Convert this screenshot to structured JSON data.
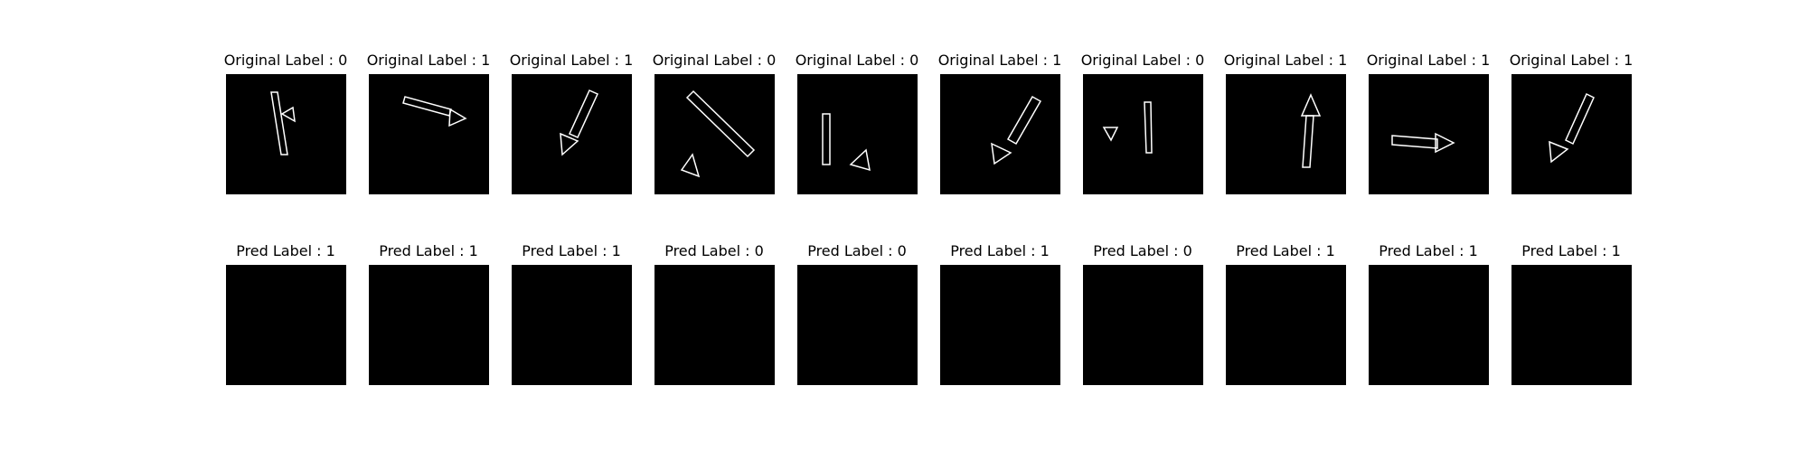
{
  "colors": {
    "background": "#ffffff",
    "panel": "#000000",
    "outline": "#ffffff",
    "text": "#000000"
  },
  "original_titles": [
    "Original Label : 0",
    "Original Label : 1",
    "Original Label : 1",
    "Original Label : 0",
    "Original Label : 0",
    "Original Label : 1",
    "Original Label : 0",
    "Original Label : 1",
    "Original Label : 1",
    "Original Label : 1"
  ],
  "pred_titles": [
    "Pred Label : 1",
    "Pred Label : 1",
    "Pred Label : 1",
    "Pred Label : 0",
    "Pred Label : 0",
    "Pred Label : 1",
    "Pred Label : 0",
    "Pred Label : 1",
    "Pred Label : 1",
    "Pred Label : 1"
  ]
}
